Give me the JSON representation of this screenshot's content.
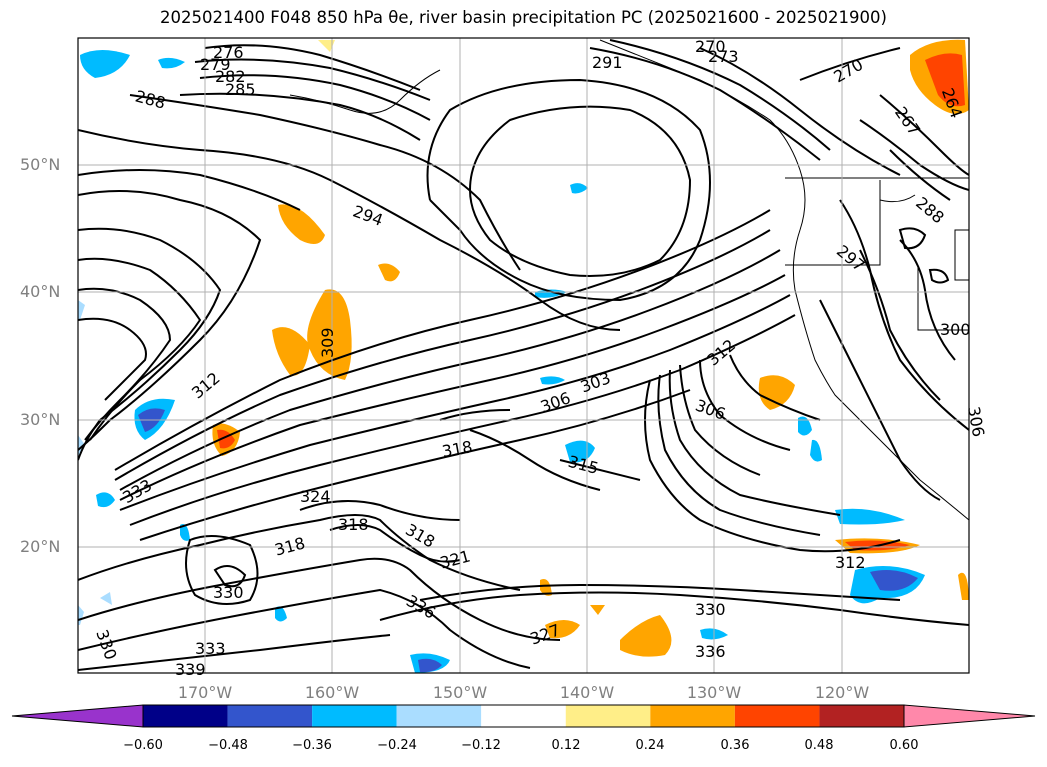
{
  "title": "2025021400 F048 850 hPa θe, river basin precipitation PC (2025021600 - 2025021900)",
  "lat_labels": [
    "50°N",
    "40°N",
    "30°N",
    "20°N"
  ],
  "lon_labels": [
    "170°W",
    "160°W",
    "150°W",
    "140°W",
    "130°W",
    "120°W"
  ],
  "colorbar": {
    "ticks": [
      "−0.60",
      "−0.48",
      "−0.36",
      "−0.24",
      "−0.12",
      "0.12",
      "0.24",
      "0.36",
      "0.48",
      "0.60"
    ],
    "colors": [
      "#9933cc",
      "#000088",
      "#3355cc",
      "#00bbff",
      "#aaddff",
      "#ffffff",
      "#ffee88",
      "#ffa500",
      "#ff4400",
      "#b22222",
      "#ff88aa"
    ]
  },
  "contour_labels": [
    "276",
    "279",
    "282",
    "285",
    "288",
    "294",
    "309",
    "312",
    "318",
    "324",
    "318",
    "318",
    "318",
    "330",
    "333",
    "339",
    "330",
    "333",
    "321",
    "336",
    "327",
    "330",
    "336",
    "312",
    "306",
    "303",
    "306",
    "315",
    "291",
    "273",
    "270",
    "270",
    "264",
    "267",
    "288",
    "297",
    "300",
    "306",
    "312"
  ]
}
